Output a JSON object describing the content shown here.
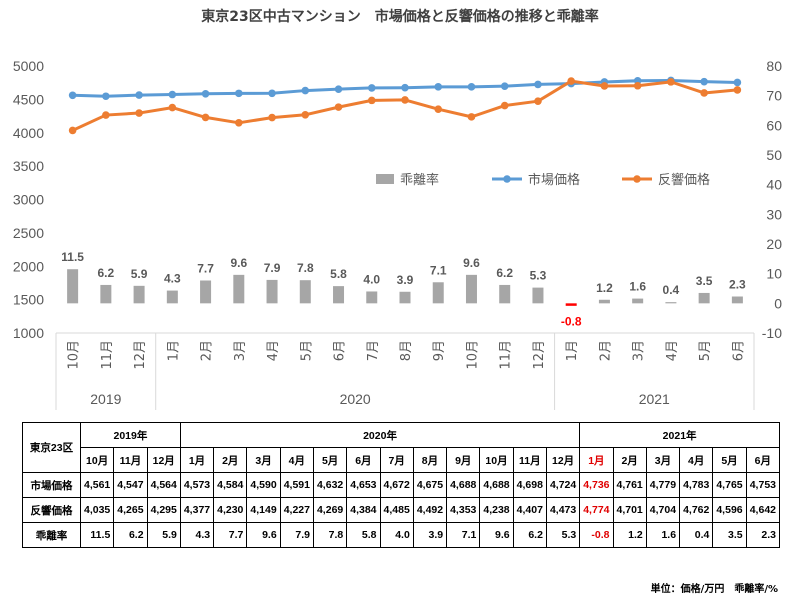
{
  "title": "東京23区中古マンション　市場価格と反響価格の推移と乖離率",
  "chart_data": {
    "type": "line",
    "categories": [
      "10月",
      "11月",
      "12月",
      "1月",
      "2月",
      "3月",
      "4月",
      "5月",
      "6月",
      "7月",
      "8月",
      "9月",
      "10月",
      "11月",
      "12月",
      "1月",
      "2月",
      "3月",
      "4月",
      "5月",
      "6月"
    ],
    "year_groups": [
      {
        "label": "2019",
        "count": 3
      },
      {
        "label": "2020",
        "count": 12
      },
      {
        "label": "2021",
        "count": 6
      }
    ],
    "series": [
      {
        "name": "乖離率",
        "type": "bar",
        "axis": "right",
        "color": "#a6a6a6",
        "values": [
          11.5,
          6.2,
          5.9,
          4.3,
          7.7,
          9.6,
          7.9,
          7.8,
          5.8,
          4.0,
          3.9,
          7.1,
          9.6,
          6.2,
          5.3,
          -0.8,
          1.2,
          1.6,
          0.4,
          3.5,
          2.3
        ],
        "labels": [
          "11.5",
          "6.2",
          "5.9",
          "4.3",
          "7.7",
          "9.6",
          "7.9",
          "7.8",
          "5.8",
          "4.0",
          "3.9",
          "7.1",
          "9.6",
          "6.2",
          "5.3",
          "-0.8",
          "1.2",
          "1.6",
          "0.4",
          "3.5",
          "2.3"
        ]
      },
      {
        "name": "市場価格",
        "type": "line",
        "axis": "left",
        "color": "#5b9bd5",
        "values": [
          4561,
          4547,
          4564,
          4573,
          4584,
          4590,
          4591,
          4632,
          4653,
          4672,
          4675,
          4688,
          4688,
          4698,
          4724,
          4736,
          4761,
          4779,
          4783,
          4765,
          4753
        ]
      },
      {
        "name": "反響価格",
        "type": "line",
        "axis": "left",
        "color": "#ed7d31",
        "values": [
          4035,
          4265,
          4295,
          4377,
          4230,
          4149,
          4227,
          4269,
          4384,
          4485,
          4492,
          4353,
          4238,
          4407,
          4473,
          4774,
          4701,
          4704,
          4762,
          4596,
          4642
        ]
      }
    ],
    "y_left": {
      "min": 1000,
      "max": 5000,
      "step": 500,
      "ticks": [
        "1000",
        "1500",
        "2000",
        "2500",
        "3000",
        "3500",
        "4000",
        "4500",
        "5000"
      ]
    },
    "y_right": {
      "min": -10,
      "max": 80,
      "step": 10,
      "ticks": [
        "-10",
        "0",
        "10",
        "20",
        "30",
        "40",
        "50",
        "60",
        "70",
        "80"
      ]
    },
    "negative_label_color": "#ff0000",
    "legend_position": "center-right",
    "grid": false
  },
  "table": {
    "corner": "東京23区",
    "years": [
      {
        "label": "2019年",
        "span": 3
      },
      {
        "label": "2020年",
        "span": 12
      },
      {
        "label": "2021年",
        "span": 6
      }
    ],
    "months": [
      "10月",
      "11月",
      "12月",
      "1月",
      "2月",
      "3月",
      "4月",
      "5月",
      "6月",
      "7月",
      "8月",
      "9月",
      "10月",
      "11月",
      "12月",
      "1月",
      "2月",
      "3月",
      "4月",
      "5月",
      "6月"
    ],
    "highlight_index": 15,
    "rows": [
      {
        "label": "市場価格",
        "values": [
          "4,561",
          "4,547",
          "4,564",
          "4,573",
          "4,584",
          "4,590",
          "4,591",
          "4,632",
          "4,653",
          "4,672",
          "4,675",
          "4,688",
          "4,688",
          "4,698",
          "4,724",
          "4,736",
          "4,761",
          "4,779",
          "4,783",
          "4,765",
          "4,753"
        ]
      },
      {
        "label": "反響価格",
        "values": [
          "4,035",
          "4,265",
          "4,295",
          "4,377",
          "4,230",
          "4,149",
          "4,227",
          "4,269",
          "4,384",
          "4,485",
          "4,492",
          "4,353",
          "4,238",
          "4,407",
          "4,473",
          "4,774",
          "4,701",
          "4,704",
          "4,762",
          "4,596",
          "4,642"
        ]
      },
      {
        "label": "乖離率",
        "values": [
          "11.5",
          "6.2",
          "5.9",
          "4.3",
          "7.7",
          "9.6",
          "7.9",
          "7.8",
          "5.8",
          "4.0",
          "3.9",
          "7.1",
          "9.6",
          "6.2",
          "5.3",
          "-0.8",
          "1.2",
          "1.6",
          "0.4",
          "3.5",
          "2.3"
        ]
      }
    ]
  },
  "unit_note": "単位：価格/万円　乖離率/%"
}
